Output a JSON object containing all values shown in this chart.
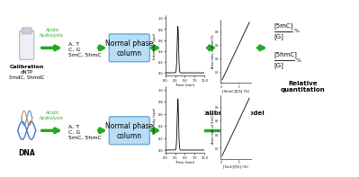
{
  "bg_color": "#ffffff",
  "arrow_color": "#22aa22",
  "box_color": "#b8ddf7",
  "box_edge": "#5599cc",
  "text_color": "#000000",
  "green_color": "#22aa22",
  "row1_label_line1": "Calibration",
  "row1_label_line2": "dNTP",
  "row1_label_line3": "5mdC, 5hmdC",
  "row2_label": "DNA",
  "hydrolysis_text": "Acidic\nhydrolysis",
  "nucleobases_text1": "A, T",
  "nucleobases_text2": "C, G",
  "nucleobases_text3": "5mC, 5hmC",
  "box_text": "Normal phase\ncolumn",
  "cal_model_text": "Calibration model",
  "rel_quant_text": "Relative\nquantitation",
  "ratio1_num": "[5mC]",
  "ratio1_den": "[G]",
  "ratio2_num": "[5hmC]",
  "ratio2_den": "[G]",
  "percent": "%",
  "xtime_label": "Time (min)",
  "ylabel_chrom": "Intensity (cps)",
  "ylabel_cal1": "Area ratio of 5mC/G",
  "ylabel_cal2": "Area ratio of 5hmC/G",
  "xlabel_cal1": "[5mC]/[G] (%)",
  "xlabel_cal2": "[5hmC]/[G] (%)"
}
